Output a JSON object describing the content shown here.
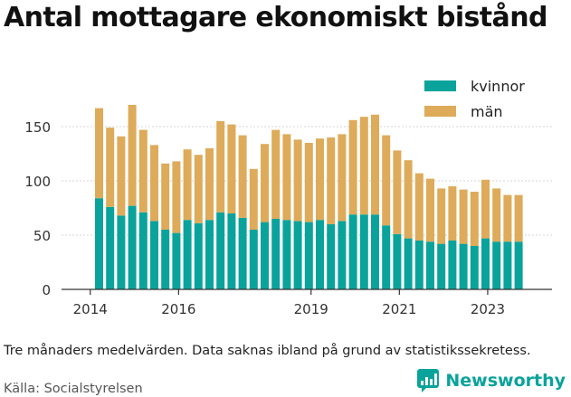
{
  "title": "Antal mottagare ekonomiskt bistånd",
  "note": "Tre månaders medelvärden. Data saknas ibland på grund av statistikssekretess.",
  "source": "Källa: Socialstyrelsen",
  "brand": {
    "name": "Newsworthy",
    "icon": "newsworthy-logo-icon",
    "color": "#0aa39b"
  },
  "colors": {
    "kvinnor": "#0aa39b",
    "man": "#ddab5a"
  },
  "chart_data": {
    "type": "bar",
    "stacked": true,
    "x_ticks": [
      "2014",
      "2016",
      "2019",
      "2021",
      "2023"
    ],
    "x_tick_index": [
      -0.8,
      7.2,
      19.2,
      27.2,
      35.2
    ],
    "ylim": [
      0,
      175
    ],
    "yticks": [
      0,
      50,
      100,
      150
    ],
    "grid": true,
    "legend_position": "top-right",
    "series": [
      {
        "name": "kvinnor",
        "color": "#0aa39b",
        "values": [
          84,
          76,
          68,
          77,
          71,
          63,
          55,
          52,
          64,
          61,
          64,
          71,
          70,
          66,
          55,
          62,
          65,
          64,
          63,
          62,
          64,
          60,
          63,
          69,
          69,
          69,
          59,
          51,
          47,
          45,
          44,
          42,
          45,
          42,
          40,
          47,
          44,
          44,
          44
        ]
      },
      {
        "name": "män",
        "color": "#ddab5a",
        "values": [
          83,
          73,
          73,
          93,
          76,
          70,
          61,
          66,
          65,
          63,
          66,
          84,
          82,
          76,
          56,
          72,
          82,
          79,
          75,
          73,
          75,
          80,
          80,
          87,
          90,
          92,
          83,
          77,
          72,
          62,
          58,
          51,
          50,
          50,
          50,
          54,
          49,
          43,
          43
        ]
      }
    ]
  }
}
